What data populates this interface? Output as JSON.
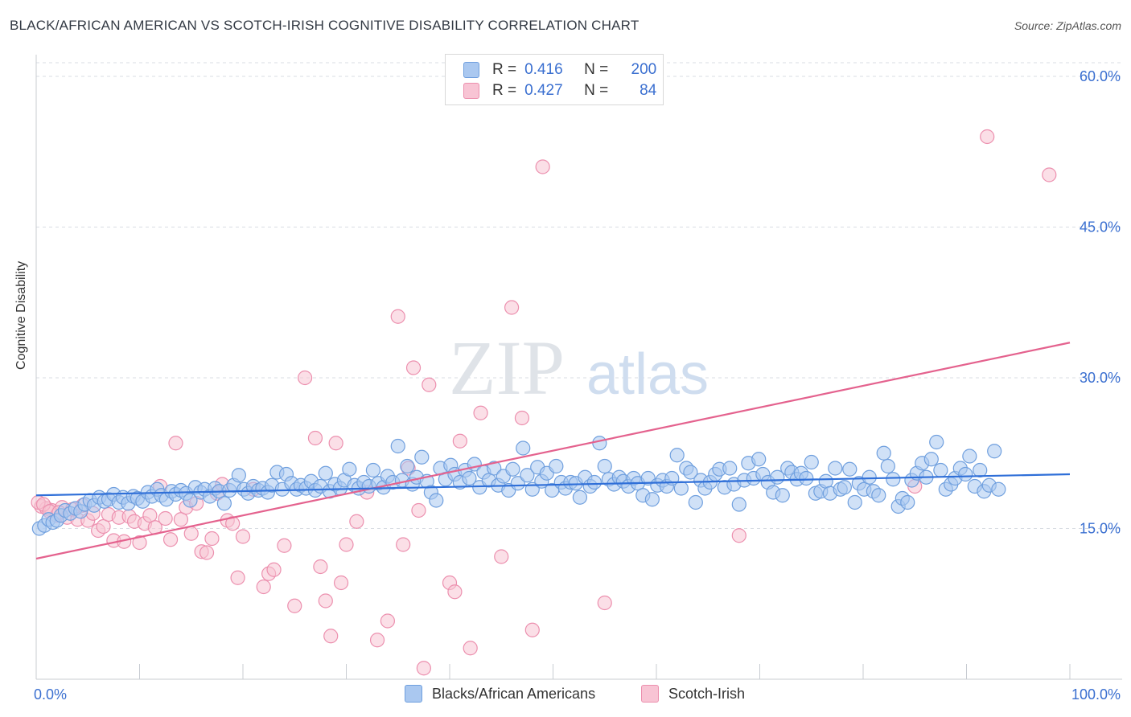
{
  "header": {
    "title": "BLACK/AFRICAN AMERICAN VS SCOTCH-IRISH COGNITIVE DISABILITY CORRELATION CHART",
    "source": "Source: ZipAtlas.com"
  },
  "legend_top": {
    "rows": [
      {
        "r_label": "R =",
        "r_value": "0.416",
        "n_label": "N =",
        "n_value": "200"
      },
      {
        "r_label": "R =",
        "r_value": "0.427",
        "n_label": "N =",
        "n_value": "84"
      }
    ]
  },
  "legend_bottom": {
    "items": [
      {
        "label": "Blacks/African Americans"
      },
      {
        "label": "Scotch-Irish"
      }
    ]
  },
  "watermark": {
    "zip": "ZIP",
    "atlas": "atlas"
  },
  "colors": {
    "blue_fill": "#aac8f0",
    "blue_stroke": "#6f9fde",
    "blue_line": "#2f6fd8",
    "pink_fill": "#f8c4d4",
    "pink_stroke": "#ec8fae",
    "pink_line": "#e4628e",
    "tick_label": "#3a6fd0",
    "grid": "#d9dde3"
  },
  "chart_data": {
    "type": "scatter",
    "title": "BLACK/AFRICAN AMERICAN VS SCOTCH-IRISH COGNITIVE DISABILITY CORRELATION CHART",
    "xlabel": "",
    "ylabel": "Cognitive Disability",
    "xlim": [
      0,
      100
    ],
    "ylim": [
      0,
      62
    ],
    "x_tick_labels": [
      "0.0%",
      "100.0%"
    ],
    "y_ticks": [
      15,
      30,
      45,
      60
    ],
    "y_tick_labels": [
      "15.0%",
      "30.0%",
      "45.0%",
      "60.0%"
    ],
    "grid": true,
    "legend_position": "top-center",
    "series": [
      {
        "name": "Blacks/African Americans",
        "color": "#6f9fde",
        "r": 0.416,
        "n": 200,
        "trend": {
          "x": [
            0,
            100
          ],
          "y": [
            18.3,
            20.4
          ]
        },
        "points": [
          [
            0.3,
            15.0
          ],
          [
            0.8,
            15.3
          ],
          [
            1.2,
            15.9
          ],
          [
            1.6,
            15.6
          ],
          [
            2.0,
            15.8
          ],
          [
            2.4,
            16.3
          ],
          [
            2.8,
            16.8
          ],
          [
            3.3,
            16.5
          ],
          [
            3.8,
            17.0
          ],
          [
            4.3,
            16.7
          ],
          [
            4.7,
            17.4
          ],
          [
            5.2,
            17.8
          ],
          [
            5.6,
            17.3
          ],
          [
            6.1,
            18.1
          ],
          [
            6.6,
            17.7
          ],
          [
            7.0,
            17.9
          ],
          [
            7.5,
            18.4
          ],
          [
            8.0,
            17.6
          ],
          [
            8.4,
            18.1
          ],
          [
            8.9,
            17.5
          ],
          [
            9.4,
            18.2
          ],
          [
            9.8,
            18.0
          ],
          [
            10.3,
            17.7
          ],
          [
            10.8,
            18.6
          ],
          [
            11.2,
            18.2
          ],
          [
            11.7,
            18.9
          ],
          [
            12.1,
            18.3
          ],
          [
            12.6,
            17.9
          ],
          [
            13.1,
            18.7
          ],
          [
            13.5,
            18.4
          ],
          [
            14.0,
            18.8
          ],
          [
            14.5,
            18.5
          ],
          [
            14.9,
            17.8
          ],
          [
            15.4,
            19.1
          ],
          [
            15.9,
            18.6
          ],
          [
            16.3,
            18.9
          ],
          [
            16.8,
            18.2
          ],
          [
            17.3,
            19.0
          ],
          [
            17.7,
            18.7
          ],
          [
            18.2,
            17.5
          ],
          [
            18.7,
            18.8
          ],
          [
            19.1,
            19.3
          ],
          [
            19.6,
            20.3
          ],
          [
            20.1,
            18.9
          ],
          [
            20.5,
            18.5
          ],
          [
            21.0,
            19.2
          ],
          [
            21.5,
            18.8
          ],
          [
            21.9,
            19.0
          ],
          [
            22.4,
            18.6
          ],
          [
            22.8,
            19.3
          ],
          [
            23.3,
            20.6
          ],
          [
            23.8,
            18.9
          ],
          [
            24.2,
            20.4
          ],
          [
            24.7,
            19.5
          ],
          [
            25.2,
            18.9
          ],
          [
            25.6,
            19.3
          ],
          [
            26.1,
            19.0
          ],
          [
            26.6,
            19.7
          ],
          [
            27.0,
            18.8
          ],
          [
            27.5,
            19.2
          ],
          [
            28.0,
            20.5
          ],
          [
            28.4,
            18.7
          ],
          [
            28.9,
            19.4
          ],
          [
            29.4,
            19.0
          ],
          [
            29.8,
            19.8
          ],
          [
            30.3,
            20.9
          ],
          [
            30.8,
            19.3
          ],
          [
            31.2,
            19.0
          ],
          [
            31.7,
            19.6
          ],
          [
            32.2,
            19.2
          ],
          [
            32.6,
            20.8
          ],
          [
            33.1,
            19.5
          ],
          [
            33.6,
            19.1
          ],
          [
            34.0,
            20.2
          ],
          [
            34.5,
            19.6
          ],
          [
            35.0,
            23.2
          ],
          [
            35.4,
            19.8
          ],
          [
            35.9,
            21.2
          ],
          [
            36.4,
            19.4
          ],
          [
            36.8,
            20.1
          ],
          [
            37.3,
            22.1
          ],
          [
            37.8,
            19.7
          ],
          [
            38.2,
            18.6
          ],
          [
            38.7,
            17.8
          ],
          [
            39.1,
            21.0
          ],
          [
            39.6,
            19.9
          ],
          [
            40.1,
            21.3
          ],
          [
            40.5,
            20.4
          ],
          [
            41.0,
            19.6
          ],
          [
            41.5,
            20.8
          ],
          [
            41.9,
            20.0
          ],
          [
            42.4,
            21.4
          ],
          [
            42.9,
            19.1
          ],
          [
            43.3,
            20.6
          ],
          [
            43.8,
            19.8
          ],
          [
            44.3,
            21.0
          ],
          [
            44.7,
            19.3
          ],
          [
            45.2,
            20.2
          ],
          [
            45.7,
            18.8
          ],
          [
            46.1,
            20.9
          ],
          [
            46.6,
            19.5
          ],
          [
            47.1,
            23.0
          ],
          [
            47.5,
            20.3
          ],
          [
            48.0,
            18.9
          ],
          [
            48.5,
            21.1
          ],
          [
            48.9,
            19.7
          ],
          [
            49.4,
            20.5
          ],
          [
            49.9,
            18.8
          ],
          [
            50.3,
            21.2
          ],
          [
            50.8,
            19.6
          ],
          [
            51.2,
            19.0
          ],
          [
            51.7,
            19.6
          ],
          [
            52.2,
            19.5
          ],
          [
            52.6,
            18.1
          ],
          [
            53.1,
            20.1
          ],
          [
            53.6,
            19.2
          ],
          [
            54.0,
            19.6
          ],
          [
            54.5,
            23.5
          ],
          [
            55.0,
            21.2
          ],
          [
            55.4,
            19.9
          ],
          [
            55.9,
            19.4
          ],
          [
            56.4,
            20.1
          ],
          [
            56.8,
            19.7
          ],
          [
            57.3,
            19.2
          ],
          [
            57.8,
            20.0
          ],
          [
            58.2,
            19.5
          ],
          [
            58.7,
            18.3
          ],
          [
            59.2,
            20.0
          ],
          [
            59.6,
            17.9
          ],
          [
            60.1,
            19.3
          ],
          [
            60.6,
            19.8
          ],
          [
            61.0,
            19.2
          ],
          [
            61.5,
            20.0
          ],
          [
            62.0,
            22.3
          ],
          [
            62.4,
            19.0
          ],
          [
            62.9,
            21.0
          ],
          [
            63.3,
            20.6
          ],
          [
            63.8,
            17.6
          ],
          [
            64.3,
            19.8
          ],
          [
            64.7,
            19.0
          ],
          [
            65.2,
            19.6
          ],
          [
            65.7,
            20.4
          ],
          [
            66.1,
            20.9
          ],
          [
            66.6,
            19.1
          ],
          [
            67.1,
            21.0
          ],
          [
            67.5,
            19.4
          ],
          [
            68.0,
            17.4
          ],
          [
            68.5,
            19.8
          ],
          [
            68.9,
            21.5
          ],
          [
            69.4,
            20.0
          ],
          [
            69.9,
            21.9
          ],
          [
            70.3,
            20.4
          ],
          [
            70.8,
            19.6
          ],
          [
            71.3,
            18.6
          ],
          [
            71.7,
            20.1
          ],
          [
            72.2,
            18.3
          ],
          [
            72.7,
            21.0
          ],
          [
            73.1,
            20.6
          ],
          [
            73.6,
            19.9
          ],
          [
            74.0,
            20.5
          ],
          [
            74.5,
            20.0
          ],
          [
            75.0,
            21.6
          ],
          [
            75.4,
            18.5
          ],
          [
            75.9,
            18.7
          ],
          [
            76.4,
            19.7
          ],
          [
            76.8,
            18.5
          ],
          [
            77.3,
            21.0
          ],
          [
            77.8,
            18.9
          ],
          [
            78.2,
            19.1
          ],
          [
            78.7,
            20.9
          ],
          [
            79.2,
            17.6
          ],
          [
            79.6,
            19.5
          ],
          [
            80.1,
            18.9
          ],
          [
            80.6,
            20.1
          ],
          [
            81.0,
            18.7
          ],
          [
            81.5,
            18.3
          ],
          [
            82.0,
            22.5
          ],
          [
            82.4,
            21.2
          ],
          [
            82.9,
            19.9
          ],
          [
            83.4,
            17.2
          ],
          [
            83.8,
            18.0
          ],
          [
            84.3,
            17.6
          ],
          [
            84.7,
            19.8
          ],
          [
            85.2,
            20.5
          ],
          [
            85.7,
            21.5
          ],
          [
            86.1,
            20.1
          ],
          [
            86.6,
            21.9
          ],
          [
            87.1,
            23.6
          ],
          [
            87.5,
            20.8
          ],
          [
            88.0,
            18.9
          ],
          [
            88.5,
            19.4
          ],
          [
            88.9,
            20.0
          ],
          [
            89.4,
            21.0
          ],
          [
            89.9,
            20.4
          ],
          [
            90.3,
            22.2
          ],
          [
            90.8,
            19.2
          ],
          [
            91.3,
            20.8
          ],
          [
            91.7,
            18.7
          ],
          [
            92.2,
            19.3
          ],
          [
            92.7,
            22.7
          ],
          [
            93.1,
            18.9
          ]
        ]
      },
      {
        "name": "Scotch-Irish",
        "color": "#ec8fae",
        "r": 0.427,
        "n": 84,
        "trend": {
          "x": [
            0,
            100
          ],
          "y": [
            12.0,
            33.5
          ]
        },
        "points": [
          [
            0.5,
            17.2
          ],
          [
            1.0,
            17.0
          ],
          [
            1.5,
            16.8
          ],
          [
            2.0,
            16.3
          ],
          [
            2.5,
            17.1
          ],
          [
            3.0,
            16.1
          ],
          [
            3.5,
            16.9
          ],
          [
            4.0,
            15.9
          ],
          [
            4.5,
            17.3
          ],
          [
            5.0,
            15.8
          ],
          [
            5.5,
            16.5
          ],
          [
            6.0,
            14.8
          ],
          [
            6.5,
            15.2
          ],
          [
            7.0,
            16.4
          ],
          [
            7.5,
            13.8
          ],
          [
            8.0,
            16.1
          ],
          [
            8.5,
            13.7
          ],
          [
            9.0,
            16.2
          ],
          [
            9.5,
            15.7
          ],
          [
            10.0,
            13.6
          ],
          [
            10.5,
            15.5
          ],
          [
            11.0,
            16.3
          ],
          [
            11.5,
            15.1
          ],
          [
            12.0,
            19.2
          ],
          [
            12.5,
            16.0
          ],
          [
            13.0,
            13.9
          ],
          [
            13.5,
            23.5
          ],
          [
            14.0,
            15.9
          ],
          [
            14.5,
            17.1
          ],
          [
            15.0,
            14.5
          ],
          [
            15.5,
            17.5
          ],
          [
            16.0,
            12.7
          ],
          [
            16.5,
            12.6
          ],
          [
            17.0,
            14.0
          ],
          [
            17.5,
            18.5
          ],
          [
            18.0,
            19.4
          ],
          [
            18.5,
            15.8
          ],
          [
            19.0,
            15.5
          ],
          [
            19.5,
            10.1
          ],
          [
            20.0,
            14.2
          ],
          [
            21.0,
            18.9
          ],
          [
            22.0,
            9.2
          ],
          [
            22.5,
            10.5
          ],
          [
            23.0,
            10.9
          ],
          [
            24.0,
            13.3
          ],
          [
            25.0,
            7.3
          ],
          [
            26.0,
            30.0
          ],
          [
            27.0,
            24.0
          ],
          [
            27.5,
            11.2
          ],
          [
            28.0,
            7.8
          ],
          [
            28.5,
            4.3
          ],
          [
            29.0,
            23.5
          ],
          [
            29.5,
            9.6
          ],
          [
            30.0,
            13.4
          ],
          [
            31.0,
            15.7
          ],
          [
            32.0,
            18.6
          ],
          [
            33.0,
            3.9
          ],
          [
            34.0,
            5.8
          ],
          [
            35.0,
            36.1
          ],
          [
            35.5,
            13.4
          ],
          [
            36.0,
            21.0
          ],
          [
            36.5,
            31.0
          ],
          [
            37.0,
            16.8
          ],
          [
            37.5,
            1.1
          ],
          [
            38.0,
            29.3
          ],
          [
            40.0,
            9.6
          ],
          [
            40.5,
            8.7
          ],
          [
            41.0,
            23.7
          ],
          [
            42.0,
            3.1
          ],
          [
            43.0,
            26.5
          ],
          [
            45.0,
            12.2
          ],
          [
            46.0,
            37.0
          ],
          [
            47.0,
            26.0
          ],
          [
            48.0,
            4.9
          ],
          [
            49.0,
            51.0
          ],
          [
            55.0,
            7.6
          ],
          [
            68.0,
            14.3
          ],
          [
            85.0,
            19.2
          ],
          [
            92.0,
            54.0
          ],
          [
            98.0,
            50.2
          ],
          [
            0.2,
            17.6
          ],
          [
            0.7,
            17.4
          ],
          [
            1.3,
            16.7
          ],
          [
            2.2,
            16.6
          ]
        ]
      }
    ]
  }
}
